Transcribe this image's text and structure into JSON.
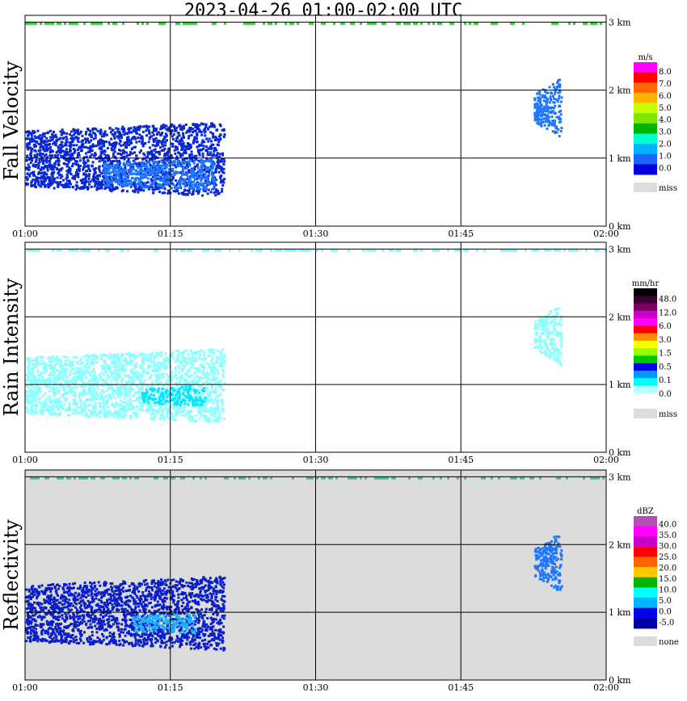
{
  "title": "2023-04-26  01:00-02:00 UTC",
  "chart_data": [
    {
      "type": "heatmap",
      "ylabel": "Fall Velocity",
      "background": "#ffffff",
      "x_ticks": [
        "01:00",
        "01:15",
        "01:30",
        "01:45",
        "02:00"
      ],
      "y_ticks": [
        "0 km",
        "1 km",
        "2 km",
        "3 km"
      ],
      "xlim": [
        0,
        60
      ],
      "ylim": [
        0,
        3.1
      ],
      "grid": true,
      "colorbar": {
        "unit": "m/s",
        "labels": [
          "8.0",
          "7.0",
          "6.0",
          "5.0",
          "4.0",
          "3.0",
          "2.0",
          "1.0",
          "0.0"
        ],
        "colors": [
          "#ff00ff",
          "#ff0000",
          "#ff6a00",
          "#ffb400",
          "#c8ff00",
          "#7ee600",
          "#00b400",
          "#00ffcc",
          "#00b4ff",
          "#1e64ff",
          "#0000dc"
        ],
        "miss_label": "miss"
      },
      "features": [
        {
          "name": "lower-echo",
          "x": [
            0,
            20.5
          ],
          "y": [
            0.45,
            1.55
          ],
          "color": "#0a28d2"
        },
        {
          "name": "lower-core",
          "x": [
            8,
            19.5
          ],
          "y": [
            0.55,
            1.0
          ],
          "color": "#1e78ff"
        },
        {
          "name": "upper-streak",
          "x": [
            52.5,
            55.3
          ],
          "y": [
            1.3,
            2.2
          ],
          "color": "#1e78ff"
        },
        {
          "name": "top-clutter-band",
          "x": [
            0,
            60
          ],
          "y": [
            2.96,
            3.0
          ],
          "color": "#3cc83c"
        }
      ]
    },
    {
      "type": "heatmap",
      "ylabel": "Rain Intensity",
      "background": "#ffffff",
      "x_ticks": [
        "01:00",
        "01:15",
        "01:30",
        "01:45",
        "02:00"
      ],
      "y_ticks": [
        "0 km",
        "1 km",
        "2 km",
        "3 km"
      ],
      "xlim": [
        0,
        60
      ],
      "ylim": [
        0,
        3.1
      ],
      "grid": true,
      "colorbar": {
        "unit": "mm/hr",
        "labels": [
          "48.0",
          "12.0",
          "6.0",
          "3.0",
          "1.5",
          "0.5",
          "0.1",
          "0.0"
        ],
        "colors": [
          "#000000",
          "#3c0032",
          "#780064",
          "#c800c8",
          "#ff00ff",
          "#ff0000",
          "#ff8c00",
          "#ffff00",
          "#96ff00",
          "#00c800",
          "#0000e6",
          "#0096ff",
          "#00ffff",
          "#b4ffff",
          "#ffffff"
        ],
        "miss_label": "miss"
      },
      "features": [
        {
          "name": "lower-echo",
          "x": [
            0,
            20.5
          ],
          "y": [
            0.45,
            1.55
          ],
          "color": "#8cffff"
        },
        {
          "name": "lower-core",
          "x": [
            12,
            18.5
          ],
          "y": [
            0.7,
            1.0
          ],
          "color": "#00e6ff"
        },
        {
          "name": "upper-streak",
          "x": [
            52.5,
            55.3
          ],
          "y": [
            1.3,
            2.2
          ],
          "color": "#8cffff"
        },
        {
          "name": "top-clutter-band",
          "x": [
            0,
            60
          ],
          "y": [
            2.96,
            3.0
          ],
          "color": "#6effff"
        }
      ]
    },
    {
      "type": "heatmap",
      "ylabel": "Reflectivity",
      "background": "#dcdcdc",
      "x_ticks": [
        "01:00",
        "01:15",
        "01:30",
        "01:45",
        "02:00"
      ],
      "y_ticks": [
        "0 km",
        "1 km",
        "2 km",
        "3 km"
      ],
      "xlim": [
        0,
        60
      ],
      "ylim": [
        0,
        3.1
      ],
      "grid": true,
      "colorbar": {
        "unit": "dBZ",
        "labels": [
          "40.0",
          "35.0",
          "30.0",
          "25.0",
          "20.0",
          "15.0",
          "10.0",
          "5.0",
          "0.0",
          "-5.0"
        ],
        "colors": [
          "#b450b4",
          "#ff00ff",
          "#c800c8",
          "#ff0000",
          "#ff6400",
          "#ffc800",
          "#00b400",
          "#00ffff",
          "#00b4ff",
          "#0000e6",
          "#0000a0"
        ],
        "miss_label": "none"
      },
      "features": [
        {
          "name": "lower-echo",
          "x": [
            0,
            20.5
          ],
          "y": [
            0.45,
            1.55
          ],
          "color": "#0a1ec8"
        },
        {
          "name": "lower-core",
          "x": [
            11,
            17.5
          ],
          "y": [
            0.7,
            1.0
          ],
          "color": "#1eb4ff"
        },
        {
          "name": "upper-streak",
          "x": [
            52.5,
            55.3
          ],
          "y": [
            1.3,
            2.2
          ],
          "color": "#1e78ff"
        },
        {
          "name": "top-clutter-band",
          "x": [
            0,
            60
          ],
          "y": [
            2.96,
            3.0
          ],
          "color": "#3cc88c"
        }
      ]
    }
  ]
}
